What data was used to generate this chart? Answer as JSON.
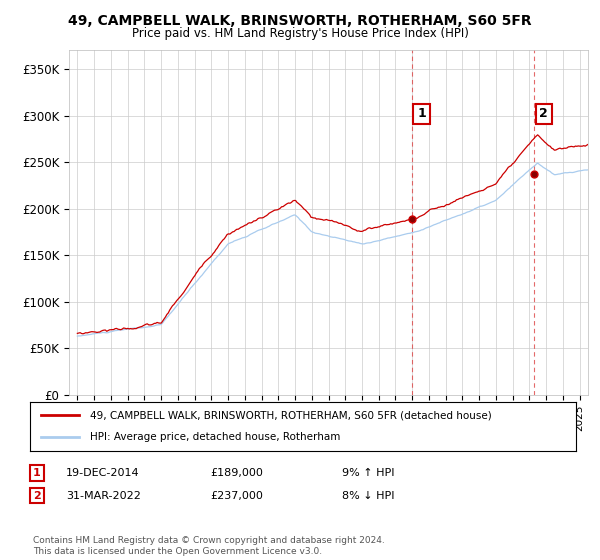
{
  "title": "49, CAMPBELL WALK, BRINSWORTH, ROTHERHAM, S60 5FR",
  "subtitle": "Price paid vs. HM Land Registry's House Price Index (HPI)",
  "ylim": [
    0,
    370000
  ],
  "xlim_start": 1994.5,
  "xlim_end": 2025.5,
  "legend_line1": "49, CAMPBELL WALK, BRINSWORTH, ROTHERHAM, S60 5FR (detached house)",
  "legend_line2": "HPI: Average price, detached house, Rotherham",
  "annotation1_date": "19-DEC-2014",
  "annotation1_price": "£189,000",
  "annotation1_hpi": "9% ↑ HPI",
  "annotation2_date": "31-MAR-2022",
  "annotation2_price": "£237,000",
  "annotation2_hpi": "8% ↓ HPI",
  "copyright": "Contains HM Land Registry data © Crown copyright and database right 2024.\nThis data is licensed under the Open Government Licence v3.0.",
  "sale1_x": 2014.96,
  "sale1_y": 189000,
  "sale2_x": 2022.25,
  "sale2_y": 237000,
  "line_color_red": "#cc0000",
  "line_color_blue": "#aaccee",
  "vline_color": "#dd4444",
  "background_color": "#ffffff",
  "grid_color": "#cccccc"
}
